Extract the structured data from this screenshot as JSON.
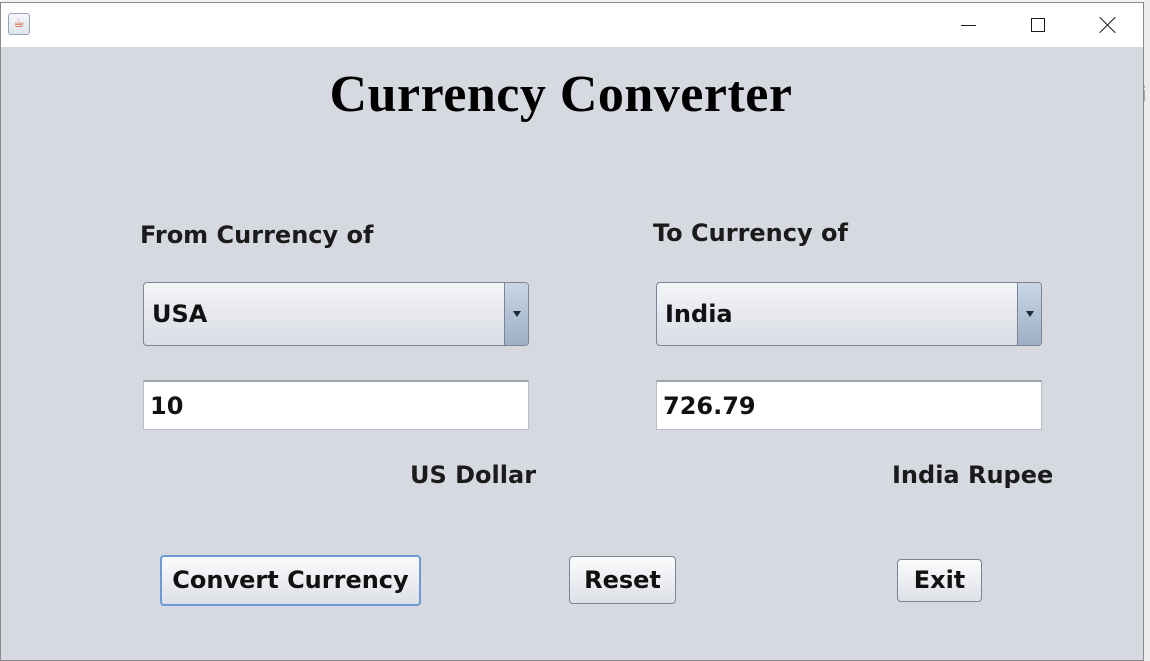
{
  "window": {
    "app_icon": "java-cup-icon",
    "controls": [
      "minimize-icon",
      "maximize-icon",
      "close-icon"
    ]
  },
  "title": "Currency Converter",
  "from": {
    "label": "From Currency of",
    "selected": "USA",
    "amount": "10",
    "unit": "US Dollar"
  },
  "to": {
    "label": "To Currency of",
    "selected": "India",
    "amount": "726.79",
    "unit": "India Rupee"
  },
  "buttons": {
    "convert": "Convert Currency",
    "reset": "Reset",
    "exit": "Exit"
  },
  "background_glyph": "i"
}
